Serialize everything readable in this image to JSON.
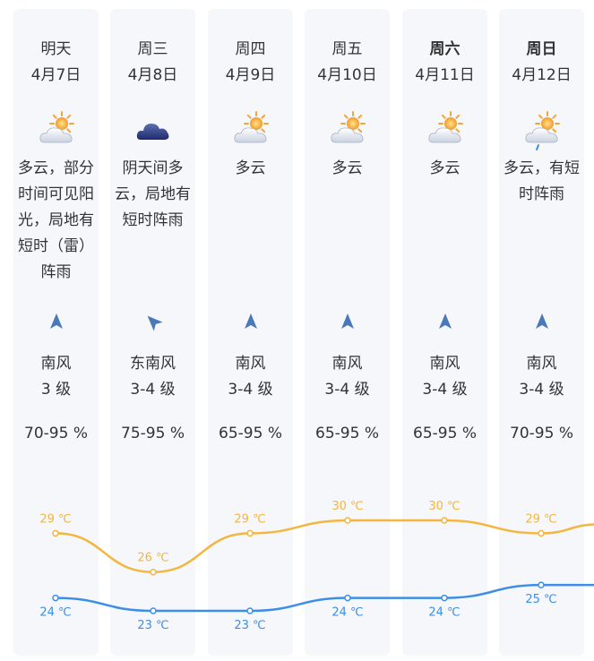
{
  "days": [
    {
      "day": "明天",
      "date": "4月7日",
      "bold": false,
      "icon": "partly-cloudy-icon",
      "desc": [
        "多云，部分",
        "时间可见阳",
        "光，局地有",
        "短时（雷）",
        "阵雨"
      ],
      "arrow_deg": 0,
      "wind_dir": "南风",
      "wind_level": "3 级",
      "humidity": "70-95 %",
      "high": "29 ℃",
      "low": "24 ℃"
    },
    {
      "day": "周三",
      "date": "4月8日",
      "bold": false,
      "icon": "overcast-cloud-icon",
      "desc": [
        "阴天间多",
        "云，局地有",
        "短时阵雨"
      ],
      "arrow_deg": -45,
      "wind_dir": "东南风",
      "wind_level": "3-4 级",
      "humidity": "75-95 %",
      "high": "26 ℃",
      "low": "23 ℃"
    },
    {
      "day": "周四",
      "date": "4月9日",
      "bold": false,
      "icon": "partly-cloudy-icon",
      "desc": [
        "多云"
      ],
      "arrow_deg": 0,
      "wind_dir": "南风",
      "wind_level": "3-4 级",
      "humidity": "65-95 %",
      "high": "29 ℃",
      "low": "23 ℃"
    },
    {
      "day": "周五",
      "date": "4月10日",
      "bold": false,
      "icon": "partly-cloudy-icon",
      "desc": [
        "多云"
      ],
      "arrow_deg": 0,
      "wind_dir": "南风",
      "wind_level": "3-4 级",
      "humidity": "65-95 %",
      "high": "30 ℃",
      "low": "24 ℃"
    },
    {
      "day": "周六",
      "date": "4月11日",
      "bold": true,
      "icon": "partly-cloudy-icon",
      "desc": [
        "多云"
      ],
      "arrow_deg": 0,
      "wind_dir": "南风",
      "wind_level": "3-4 级",
      "humidity": "65-95 %",
      "high": "30 ℃",
      "low": "24 ℃"
    },
    {
      "day": "周日",
      "date": "4月12日",
      "bold": true,
      "icon": "cloud-rain-sun-icon",
      "desc": [
        "多云，有短",
        "时阵雨"
      ],
      "arrow_deg": 0,
      "wind_dir": "南风",
      "wind_level": "3-4 级",
      "humidity": "70-95 %",
      "high": "29 ℃",
      "low": "25 ℃"
    }
  ],
  "chart_data": {
    "type": "line",
    "categories": [
      "明天",
      "周三",
      "周四",
      "周五",
      "周六",
      "周日"
    ],
    "series": [
      {
        "values": [
          29,
          26,
          29,
          30,
          30,
          29
        ]
      },
      {
        "values": [
          24,
          23,
          23,
          24,
          24,
          25
        ]
      }
    ]
  },
  "colors": {
    "high": "#f4b63f",
    "low": "#3d8ee6",
    "card": "#f5f7fb",
    "text": "#333333",
    "arrow": "#4a78b8"
  }
}
